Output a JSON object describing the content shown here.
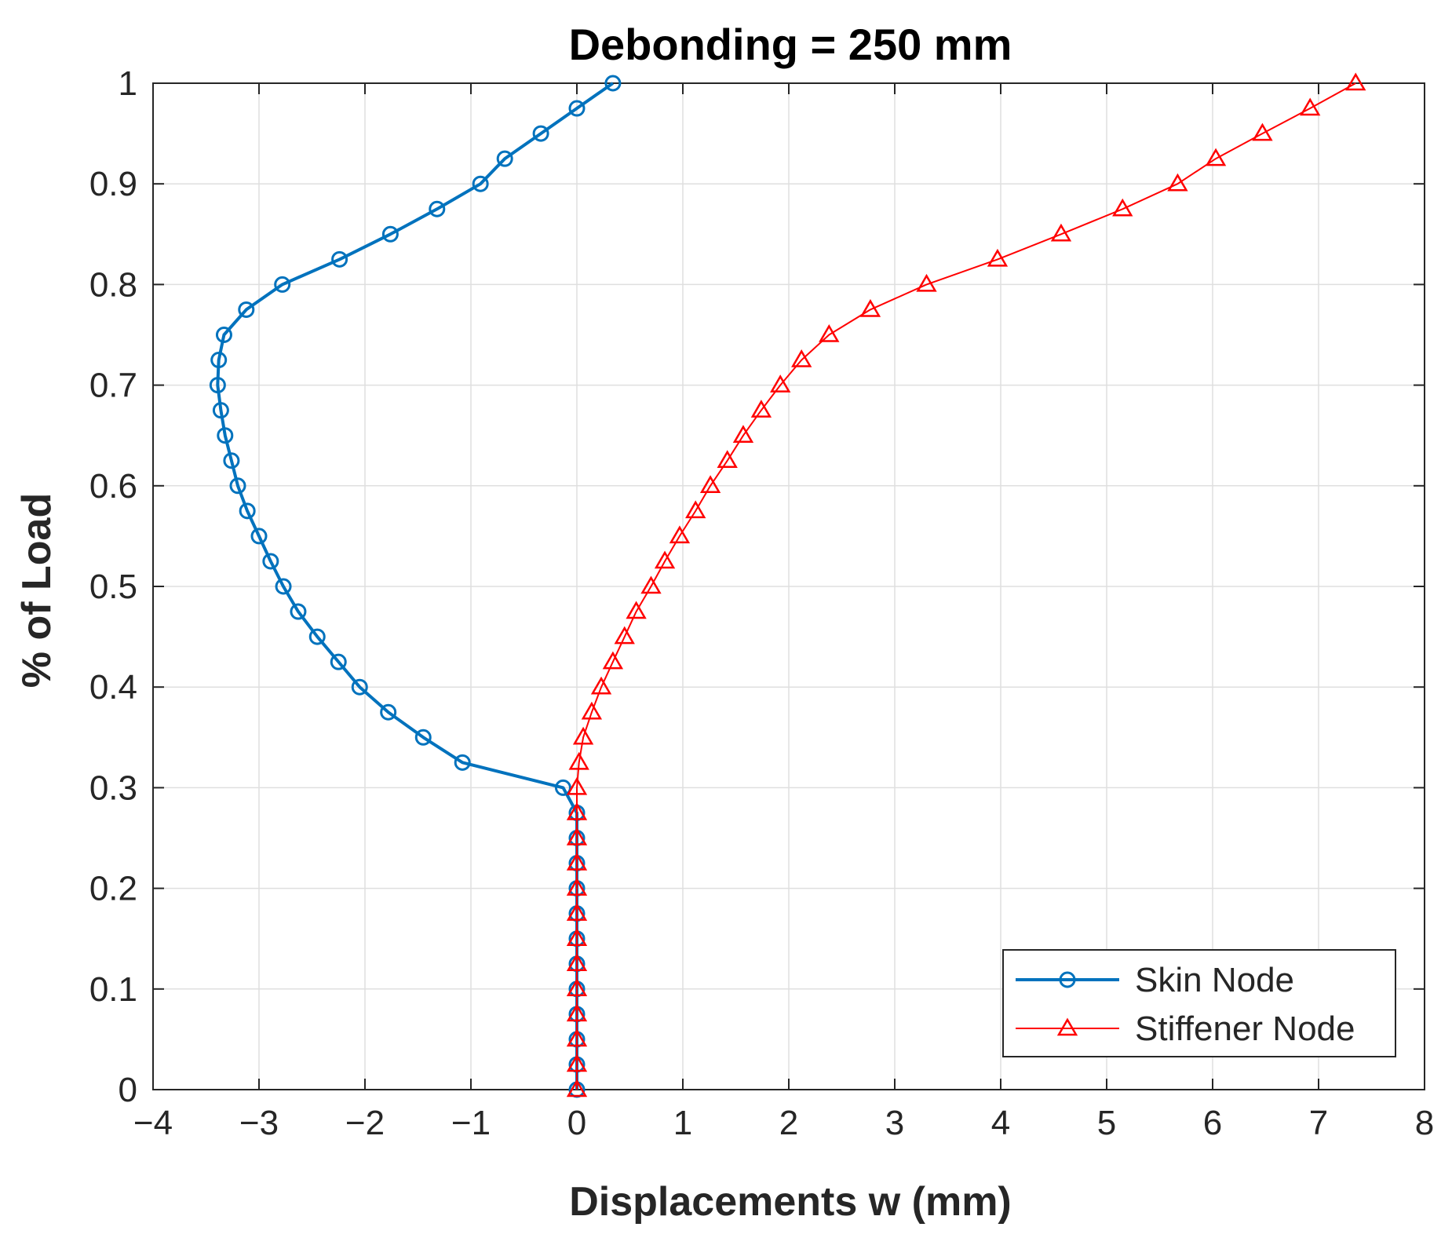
{
  "chart_data": {
    "type": "line",
    "title": "Debonding = 250 mm",
    "xlabel": "Displacements w (mm)",
    "ylabel": "% of Load",
    "xlim": [
      -4,
      8
    ],
    "ylim": [
      0,
      1
    ],
    "xticks": [
      -4,
      -3,
      -2,
      -1,
      0,
      1,
      2,
      3,
      4,
      5,
      6,
      7,
      8
    ],
    "yticks": [
      0,
      0.1,
      0.2,
      0.3,
      0.4,
      0.5,
      0.6,
      0.7,
      0.8,
      0.9,
      1
    ],
    "xtick_labels": [
      "−4",
      "−3",
      "−2",
      "−1",
      "0",
      "1",
      "2",
      "3",
      "4",
      "5",
      "6",
      "7",
      "8"
    ],
    "ytick_labels": [
      "0",
      "0.1",
      "0.2",
      "0.3",
      "0.4",
      "0.5",
      "0.6",
      "0.7",
      "0.8",
      "0.9",
      "1"
    ],
    "grid": true,
    "legend_position": "bottom-right",
    "series": [
      {
        "name": "Skin Node",
        "color": "#0072BD",
        "marker": "circle",
        "x": [
          0,
          0,
          0,
          0,
          0,
          0,
          0,
          0,
          0,
          0,
          0,
          0,
          -0.13,
          -1.08,
          -1.45,
          -1.78,
          -2.05,
          -2.25,
          -2.45,
          -2.63,
          -2.77,
          -2.89,
          -3.0,
          -3.11,
          -3.2,
          -3.26,
          -3.32,
          -3.36,
          -3.39,
          -3.38,
          -3.33,
          -3.12,
          -2.78,
          -2.24,
          -1.76,
          -1.32,
          -0.91,
          -0.68,
          -0.34,
          0,
          0.34
        ],
        "y": [
          0,
          0.025,
          0.05,
          0.075,
          0.1,
          0.125,
          0.15,
          0.175,
          0.2,
          0.225,
          0.25,
          0.275,
          0.3,
          0.325,
          0.35,
          0.375,
          0.4,
          0.425,
          0.45,
          0.475,
          0.5,
          0.525,
          0.55,
          0.575,
          0.6,
          0.625,
          0.65,
          0.675,
          0.7,
          0.725,
          0.75,
          0.775,
          0.8,
          0.825,
          0.85,
          0.875,
          0.9,
          0.925,
          0.95,
          0.975,
          1.0
        ]
      },
      {
        "name": "Stiffener Node",
        "color": "#FF0000",
        "marker": "triangle",
        "x": [
          0,
          0,
          0,
          0,
          0,
          0,
          0,
          0,
          0,
          0,
          0,
          0,
          0,
          0.02,
          0.06,
          0.14,
          0.23,
          0.34,
          0.45,
          0.56,
          0.7,
          0.83,
          0.97,
          1.12,
          1.26,
          1.42,
          1.57,
          1.74,
          1.92,
          2.12,
          2.38,
          2.77,
          3.3,
          3.97,
          4.57,
          5.15,
          5.67,
          6.03,
          6.47,
          6.92,
          7.35
        ],
        "y": [
          0,
          0.025,
          0.05,
          0.075,
          0.1,
          0.125,
          0.15,
          0.175,
          0.2,
          0.225,
          0.25,
          0.275,
          0.3,
          0.325,
          0.35,
          0.375,
          0.4,
          0.425,
          0.45,
          0.475,
          0.5,
          0.525,
          0.55,
          0.575,
          0.6,
          0.625,
          0.65,
          0.675,
          0.7,
          0.725,
          0.75,
          0.775,
          0.8,
          0.825,
          0.85,
          0.875,
          0.9,
          0.925,
          0.95,
          0.975,
          1.0
        ]
      }
    ]
  }
}
